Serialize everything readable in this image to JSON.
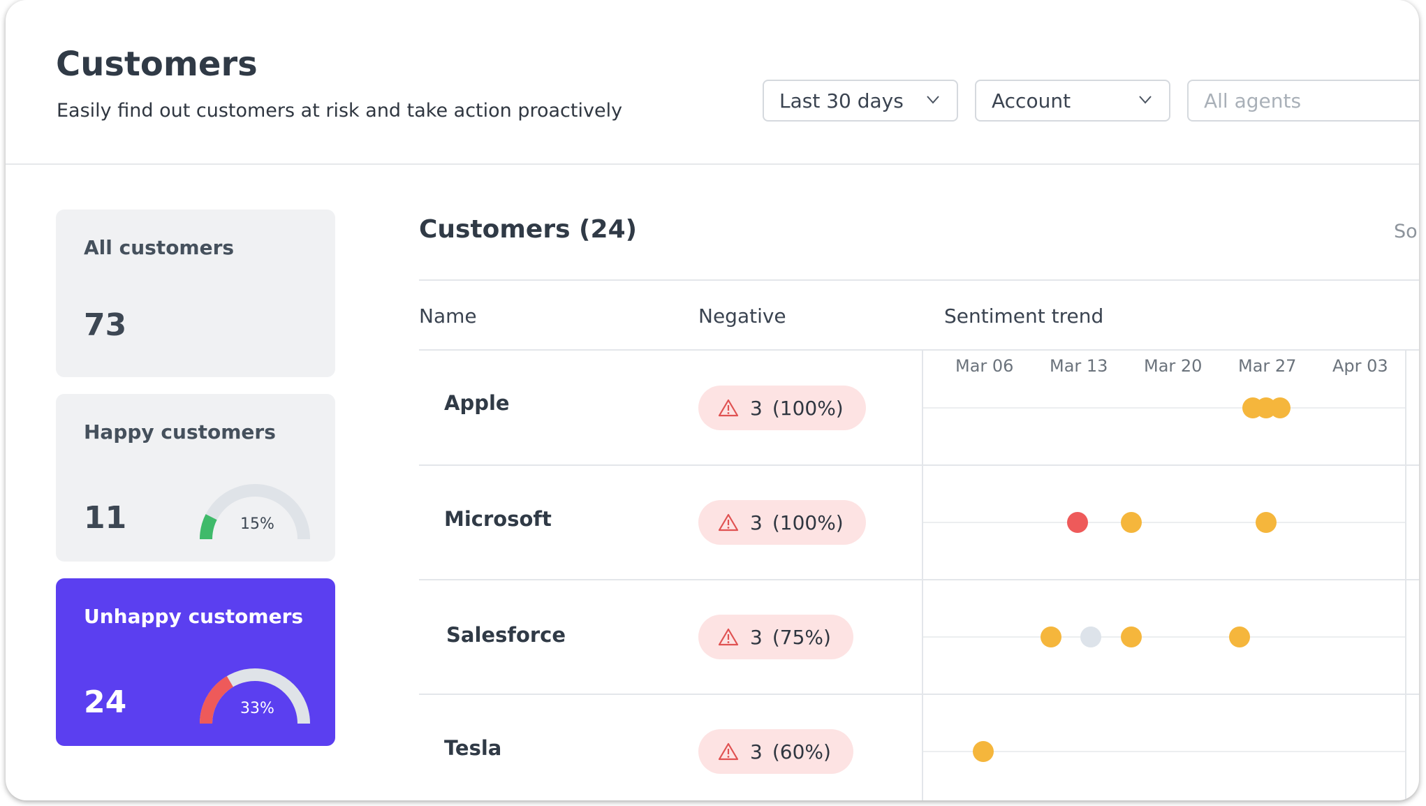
{
  "header": {
    "title": "Customers",
    "subtitle": "Easily find out customers at risk and take action proactively",
    "filters": [
      {
        "value": "Last 30 days"
      },
      {
        "value": "Account"
      },
      {
        "placeholder": "All agents"
      }
    ]
  },
  "cards": [
    {
      "label": "All customers",
      "value": "73"
    },
    {
      "label": "Happy customers",
      "value": "11",
      "percent": "15%",
      "fraction": 0.15,
      "color": "#3fba6a"
    },
    {
      "label": "Unhappy customers",
      "value": "24",
      "percent": "33%",
      "fraction": 0.33,
      "color": "#ee5a5a"
    }
  ],
  "list": {
    "title": "Customers (24)",
    "sort_label": "Sort",
    "columns": [
      "Name",
      "Negative",
      "Sentiment trend"
    ],
    "dates": [
      "Mar 06",
      "Mar 13",
      "Mar 20",
      "Mar 27",
      "Apr 03"
    ],
    "rows": [
      {
        "name": "Apple",
        "neg_count": "3",
        "neg_pct": "(100%)",
        "points": [
          {
            "date": "2024-03-26",
            "sentiment": "neutral"
          },
          {
            "date": "2024-03-27",
            "sentiment": "neutral"
          },
          {
            "date": "2024-03-28",
            "sentiment": "neutral"
          }
        ]
      },
      {
        "name": "Microsoft",
        "neg_count": "3",
        "neg_pct": "(100%)",
        "points": [
          {
            "date": "2024-03-13",
            "sentiment": "negative"
          },
          {
            "date": "2024-03-17",
            "sentiment": "neutral"
          },
          {
            "date": "2024-03-27",
            "sentiment": "neutral"
          }
        ]
      },
      {
        "name": "Salesforce",
        "neg_count": "3",
        "neg_pct": "(75%)",
        "points": [
          {
            "date": "2024-03-11",
            "sentiment": "neutral"
          },
          {
            "date": "2024-03-14",
            "sentiment": "none"
          },
          {
            "date": "2024-03-17",
            "sentiment": "neutral"
          },
          {
            "date": "2024-03-25",
            "sentiment": "neutral"
          }
        ]
      },
      {
        "name": "Tesla",
        "neg_count": "3",
        "neg_pct": "(60%)",
        "points": [
          {
            "date": "2024-03-06",
            "sentiment": "neutral"
          }
        ]
      }
    ]
  },
  "colors": {
    "accent": "#5b3ff0",
    "negative": "#ee5a5a",
    "neutral": "#f5b63c",
    "none": "#dde3ea",
    "positive": "#3fba6a",
    "badge_bg": "#fde3e3"
  }
}
